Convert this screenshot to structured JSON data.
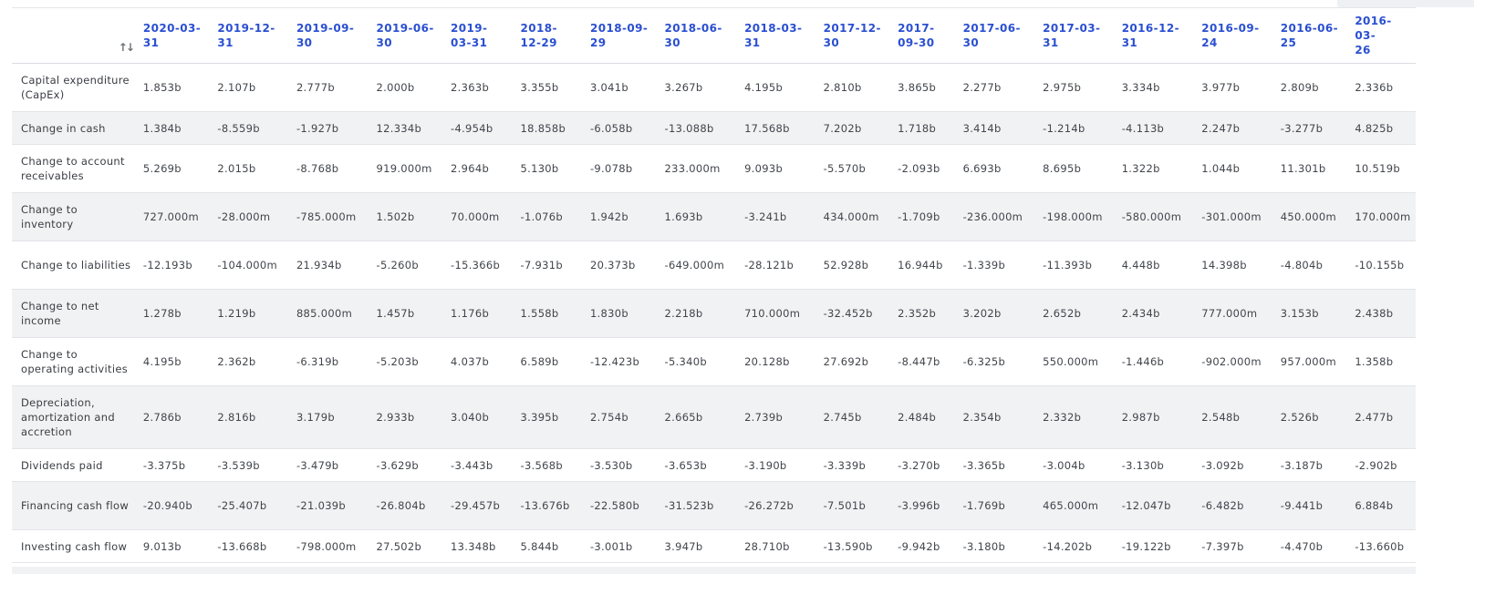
{
  "table": {
    "dates": [
      "2020-03-31",
      "2019-12-31",
      "2019-09-30",
      "2019-06-30",
      "2019-03-31",
      "2018-12-29",
      "2018-09-29",
      "2018-06-30",
      "2018-03-31",
      "2017-12-30",
      "2017-09-30",
      "2017-06-30",
      "2017-03-31",
      "2016-12-31",
      "2016-09-24",
      "2016-06-25",
      "2016-03-26"
    ],
    "header_lines": [
      [
        "2020-03-",
        "31"
      ],
      [
        "2019-12-",
        "31"
      ],
      [
        "2019-09-",
        "30"
      ],
      [
        "2019-06-",
        "30"
      ],
      [
        "2019-",
        "03-31"
      ],
      [
        "2018-",
        "12-29"
      ],
      [
        "2018-09-",
        "29"
      ],
      [
        "2018-06-",
        "30"
      ],
      [
        "2018-03-",
        "31"
      ],
      [
        "2017-12-",
        "30"
      ],
      [
        "2017-",
        "09-30"
      ],
      [
        "2017-06-",
        "30"
      ],
      [
        "2017-03-",
        "31"
      ],
      [
        "2016-12-",
        "31"
      ],
      [
        "2016-09-",
        "24"
      ],
      [
        "2016-06-",
        "25"
      ],
      [
        "2016-03-",
        "26"
      ]
    ],
    "sort_icon": "sort-arrows-icon",
    "rows": [
      {
        "label": "Capital expenditure (CapEx)",
        "values": [
          "1.853b",
          "2.107b",
          "2.777b",
          "2.000b",
          "2.363b",
          "3.355b",
          "3.041b",
          "3.267b",
          "4.195b",
          "2.810b",
          "3.865b",
          "2.277b",
          "2.975b",
          "3.334b",
          "3.977b",
          "2.809b",
          "2.336b"
        ]
      },
      {
        "label": "Change in cash",
        "values": [
          "1.384b",
          "-8.559b",
          "-1.927b",
          "12.334b",
          "-4.954b",
          "18.858b",
          "-6.058b",
          "-13.088b",
          "17.568b",
          "7.202b",
          "1.718b",
          "3.414b",
          "-1.214b",
          "-4.113b",
          "2.247b",
          "-3.277b",
          "4.825b"
        ]
      },
      {
        "label": "Change to account receivables",
        "values": [
          "5.269b",
          "2.015b",
          "-8.768b",
          "919.000m",
          "2.964b",
          "5.130b",
          "-9.078b",
          "233.000m",
          "9.093b",
          "-5.570b",
          "-2.093b",
          "6.693b",
          "8.695b",
          "1.322b",
          "1.044b",
          "11.301b",
          "10.519b"
        ]
      },
      {
        "label": "Change to inventory",
        "values": [
          "727.000m",
          "-28.000m",
          "-785.000m",
          "1.502b",
          "70.000m",
          "-1.076b",
          "1.942b",
          "1.693b",
          "-3.241b",
          "434.000m",
          "-1.709b",
          "-236.000m",
          "-198.000m",
          "-580.000m",
          "-301.000m",
          "450.000m",
          "170.000m"
        ]
      },
      {
        "label": "Change to liabilities",
        "values": [
          "-12.193b",
          "-104.000m",
          "21.934b",
          "-5.260b",
          "-15.366b",
          "-7.931b",
          "20.373b",
          "-649.000m",
          "-28.121b",
          "52.928b",
          "16.944b",
          "-1.339b",
          "-11.393b",
          "4.448b",
          "14.398b",
          "-4.804b",
          "-10.155b"
        ]
      },
      {
        "label": "Change to net income",
        "values": [
          "1.278b",
          "1.219b",
          "885.000m",
          "1.457b",
          "1.176b",
          "1.558b",
          "1.830b",
          "2.218b",
          "710.000m",
          "-32.452b",
          "2.352b",
          "3.202b",
          "2.652b",
          "2.434b",
          "777.000m",
          "3.153b",
          "2.438b"
        ]
      },
      {
        "label": "Change to operating activities",
        "values": [
          "4.195b",
          "2.362b",
          "-6.319b",
          "-5.203b",
          "4.037b",
          "6.589b",
          "-12.423b",
          "-5.340b",
          "20.128b",
          "27.692b",
          "-8.447b",
          "-6.325b",
          "550.000m",
          "-1.446b",
          "-902.000m",
          "957.000m",
          "1.358b"
        ]
      },
      {
        "label": "Depreciation, amortization and accretion",
        "values": [
          "2.786b",
          "2.816b",
          "3.179b",
          "2.933b",
          "3.040b",
          "3.395b",
          "2.754b",
          "2.665b",
          "2.739b",
          "2.745b",
          "2.484b",
          "2.354b",
          "2.332b",
          "2.987b",
          "2.548b",
          "2.526b",
          "2.477b"
        ]
      },
      {
        "label": "Dividends paid",
        "values": [
          "-3.375b",
          "-3.539b",
          "-3.479b",
          "-3.629b",
          "-3.443b",
          "-3.568b",
          "-3.530b",
          "-3.653b",
          "-3.190b",
          "-3.339b",
          "-3.270b",
          "-3.365b",
          "-3.004b",
          "-3.130b",
          "-3.092b",
          "-3.187b",
          "-2.902b"
        ]
      },
      {
        "label": "Financing cash flow",
        "values": [
          "-20.940b",
          "-25.407b",
          "-21.039b",
          "-26.804b",
          "-29.457b",
          "-13.676b",
          "-22.580b",
          "-31.523b",
          "-26.272b",
          "-7.501b",
          "-3.996b",
          "-1.769b",
          "465.000m",
          "-12.047b",
          "-6.482b",
          "-9.441b",
          "6.884b"
        ]
      },
      {
        "label": "Investing cash flow",
        "values": [
          "9.013b",
          "-13.668b",
          "-798.000m",
          "27.502b",
          "13.348b",
          "5.844b",
          "-3.001b",
          "3.947b",
          "28.710b",
          "-13.590b",
          "-9.942b",
          "-3.180b",
          "-14.202b",
          "-19.122b",
          "-7.397b",
          "-4.470b",
          "-13.660b"
        ]
      }
    ]
  },
  "colors": {
    "header_link": "#2a4fd1",
    "text": "#41454b",
    "stripe": "#f1f2f4"
  }
}
